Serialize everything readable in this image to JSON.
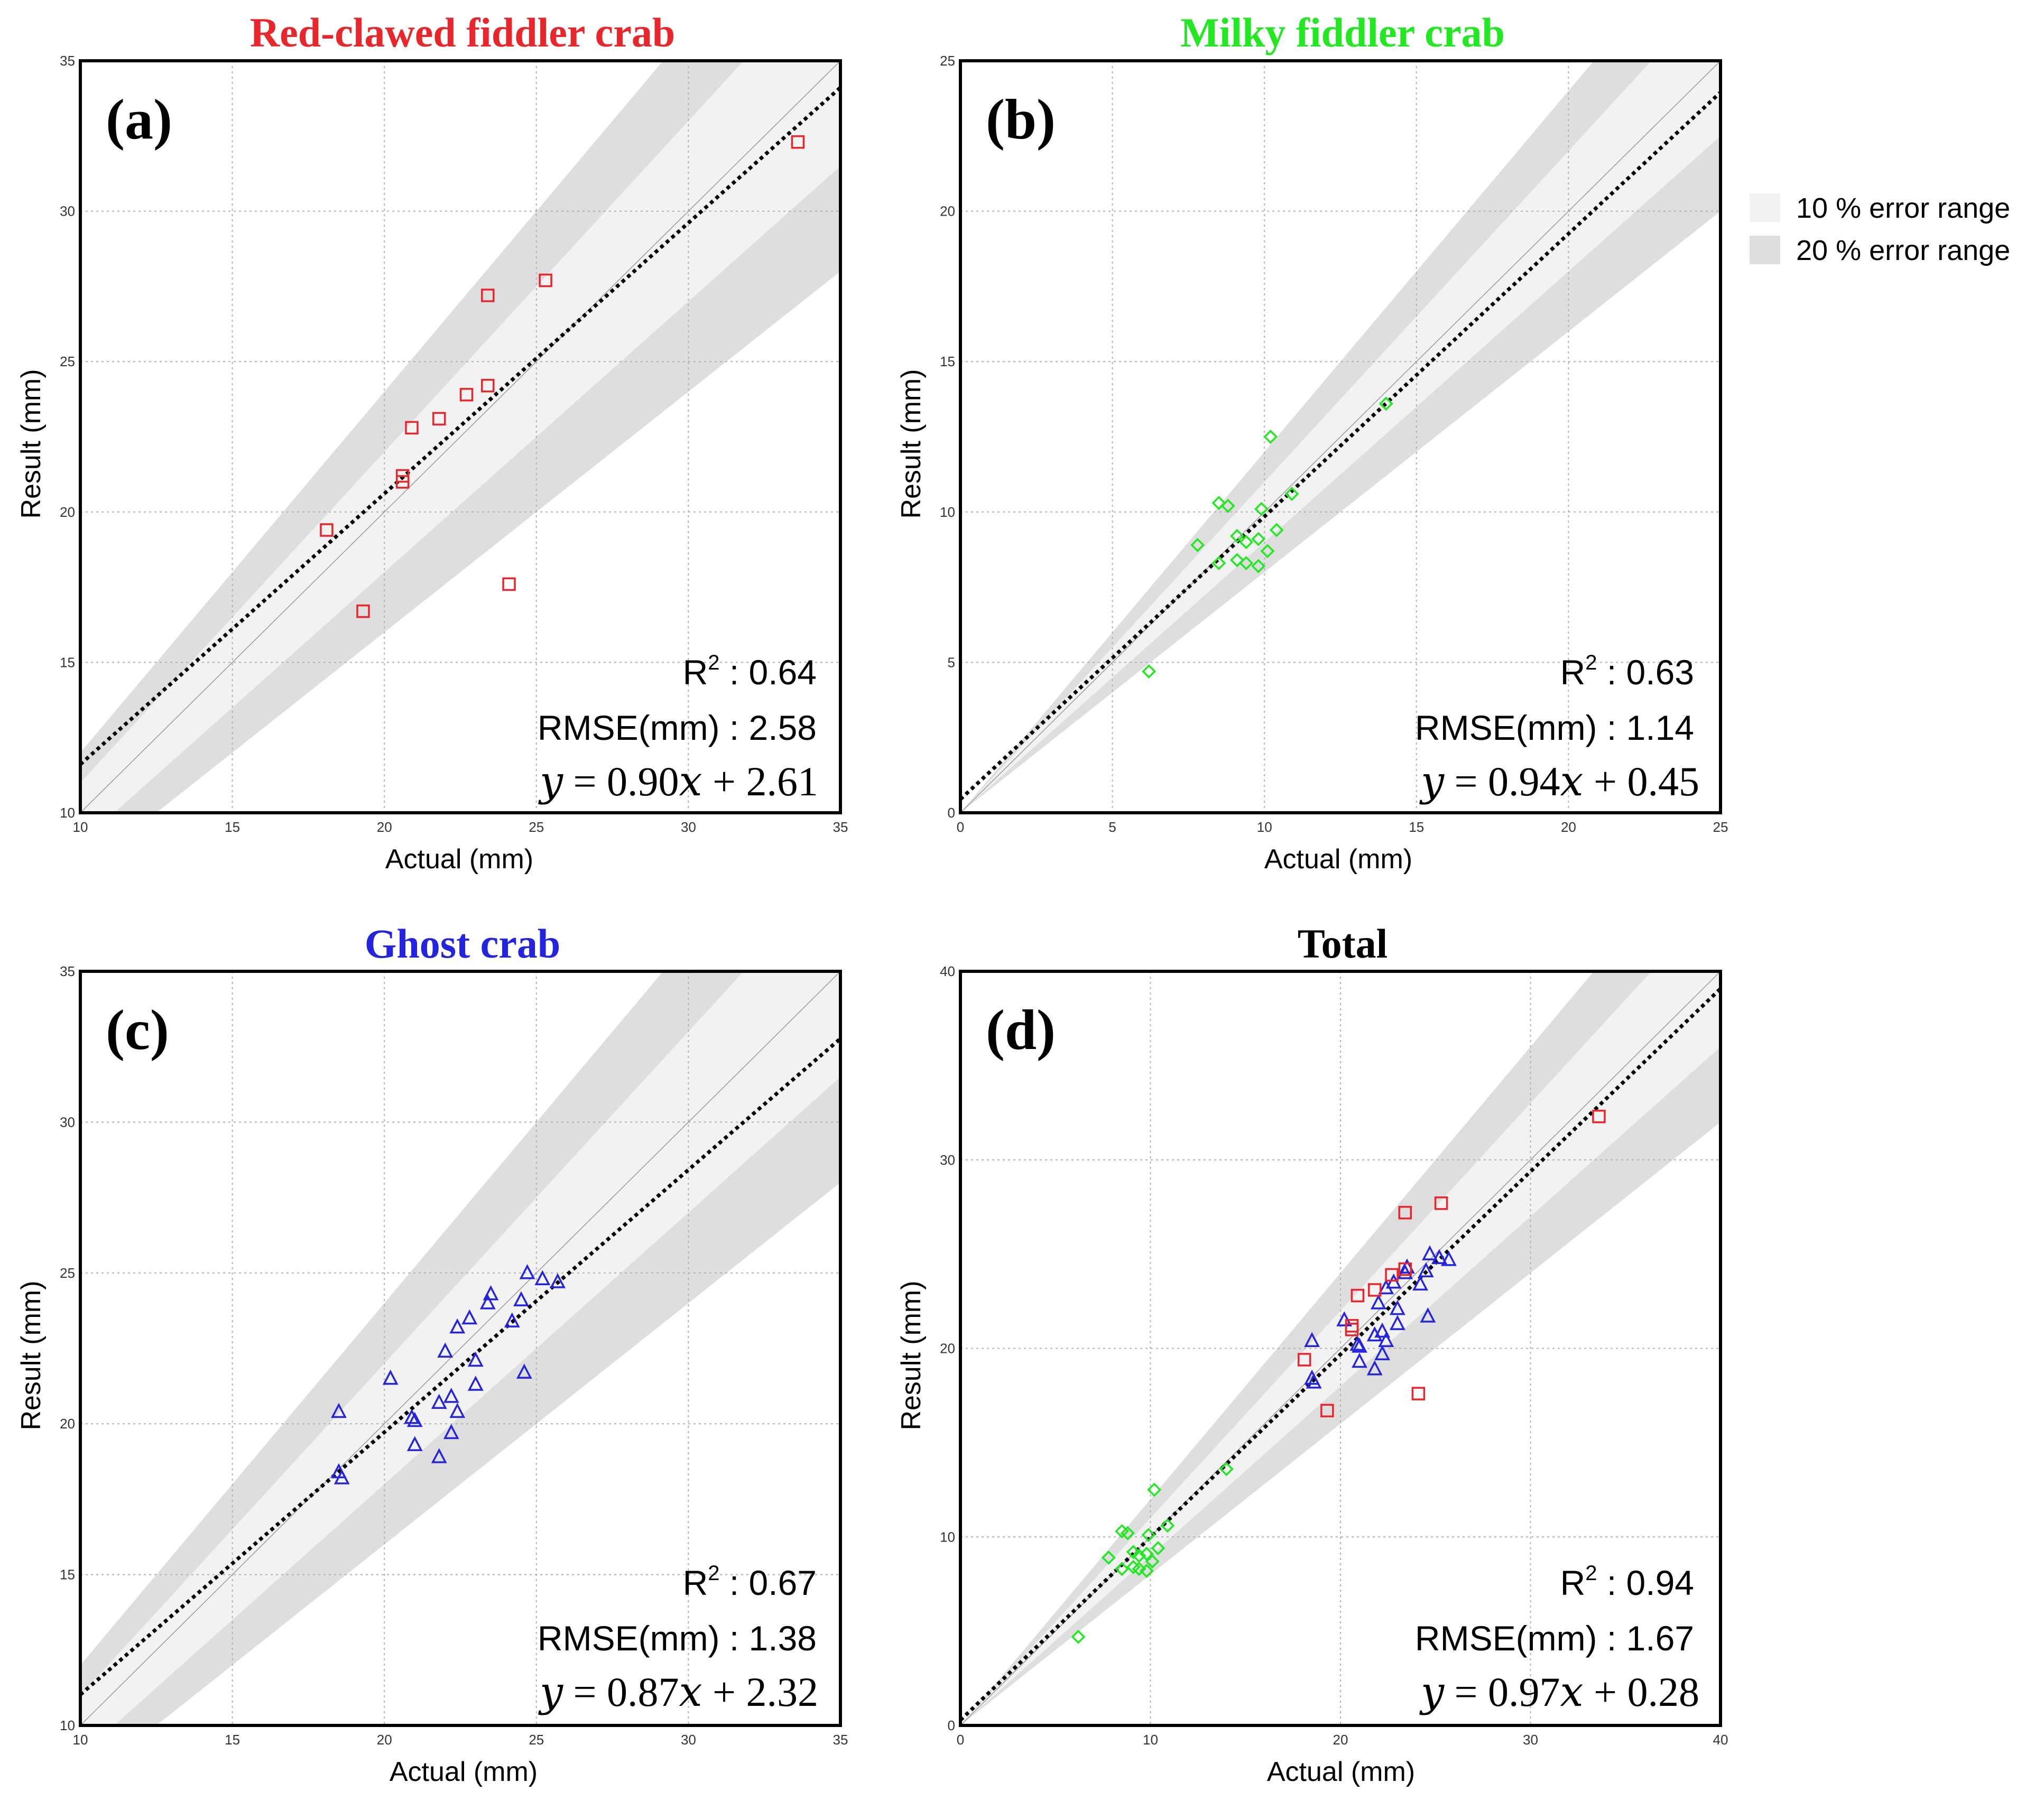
{
  "legend": {
    "items": [
      {
        "label": "10 % error range",
        "color": "#f2f2f2"
      },
      {
        "label": "20 % error range",
        "color": "#dedede"
      }
    ]
  },
  "colors": {
    "red": "#e8262c",
    "green": "#22e822",
    "blue": "#2323e0",
    "black": "#000000"
  },
  "chart_data": [
    {
      "type": "scatter",
      "panel_label": "(a)",
      "title": "Red-clawed fiddler crab",
      "title_color": "#e8262c",
      "xlabel": "Actual (mm)",
      "ylabel": "Result (mm)",
      "xlim": [
        10,
        35
      ],
      "ylim": [
        10,
        35
      ],
      "xticks": [
        10,
        15,
        20,
        25,
        30,
        35
      ],
      "yticks": [
        10,
        15,
        20,
        25,
        30,
        35
      ],
      "grid": true,
      "fit": {
        "slope": 0.9,
        "intercept": 2.61
      },
      "stats": {
        "r2_label": "R",
        "r2_sup": "2",
        "r2_value": " : 0.64",
        "rmse": "RMSE(mm) : 2.58",
        "equation": "𝑦 = 0.90𝑥 + 2.61"
      },
      "series": [
        {
          "name": "Red-clawed fiddler crab",
          "marker": "square",
          "color": "#e8262c",
          "points": [
            [
              18.1,
              19.4
            ],
            [
              19.3,
              16.7
            ],
            [
              20.6,
              21.0
            ],
            [
              20.6,
              21.2
            ],
            [
              20.9,
              22.8
            ],
            [
              21.8,
              23.1
            ],
            [
              22.7,
              23.9
            ],
            [
              23.4,
              24.2
            ],
            [
              23.4,
              27.2
            ],
            [
              25.3,
              27.7
            ],
            [
              24.1,
              17.6
            ],
            [
              33.6,
              32.3
            ]
          ]
        }
      ]
    },
    {
      "type": "scatter",
      "panel_label": "(b)",
      "title": "Milky fiddler crab",
      "title_color": "#22e822",
      "xlabel": "Actual (mm)",
      "ylabel": "Result (mm)",
      "xlim": [
        0,
        25
      ],
      "ylim": [
        0,
        25
      ],
      "xticks": [
        0,
        5,
        10,
        15,
        20,
        25
      ],
      "yticks": [
        0,
        5,
        10,
        15,
        20,
        25
      ],
      "grid": true,
      "fit": {
        "slope": 0.94,
        "intercept": 0.45
      },
      "stats": {
        "r2_label": "R",
        "r2_sup": "2",
        "r2_value": " : 0.63",
        "rmse": "RMSE(mm) : 1.14",
        "equation": "𝑦 = 0.94𝑥 + 0.45"
      },
      "series": [
        {
          "name": "Milky fiddler crab",
          "marker": "diamond",
          "color": "#22e822",
          "points": [
            [
              6.2,
              4.7
            ],
            [
              7.8,
              8.9
            ],
            [
              8.5,
              8.3
            ],
            [
              8.5,
              10.3
            ],
            [
              8.8,
              10.2
            ],
            [
              9.1,
              9.2
            ],
            [
              9.1,
              8.4
            ],
            [
              9.4,
              8.3
            ],
            [
              9.4,
              9.0
            ],
            [
              9.8,
              9.1
            ],
            [
              9.8,
              8.2
            ],
            [
              9.9,
              10.1
            ],
            [
              10.1,
              8.7
            ],
            [
              10.2,
              12.5
            ],
            [
              10.4,
              9.4
            ],
            [
              10.9,
              10.6
            ],
            [
              14.0,
              13.6
            ]
          ]
        }
      ]
    },
    {
      "type": "scatter",
      "panel_label": "(c)",
      "title": "Ghost crab",
      "title_color": "#2323e0",
      "xlabel": "Actual (mm)",
      "ylabel": "Result (mm)",
      "xlim": [
        10,
        35
      ],
      "ylim": [
        10,
        35
      ],
      "xticks": [
        10,
        15,
        20,
        25,
        30,
        35
      ],
      "yticks": [
        10,
        15,
        20,
        25,
        30,
        35
      ],
      "grid": true,
      "fit": {
        "slope": 0.87,
        "intercept": 2.32
      },
      "stats": {
        "r2_label": "R",
        "r2_sup": "2",
        "r2_value": " : 0.67",
        "rmse": "RMSE(mm) : 1.38",
        "equation": "𝑦 = 0.87𝑥 + 2.32"
      },
      "series": [
        {
          "name": "Ghost crab",
          "marker": "triangle",
          "color": "#2323e0",
          "points": [
            [
              18.5,
              18.4
            ],
            [
              18.6,
              18.2
            ],
            [
              18.5,
              20.4
            ],
            [
              20.2,
              21.5
            ],
            [
              20.9,
              20.2
            ],
            [
              21.0,
              20.1
            ],
            [
              21.0,
              19.3
            ],
            [
              21.8,
              18.9
            ],
            [
              21.8,
              20.7
            ],
            [
              22.0,
              22.4
            ],
            [
              22.2,
              20.9
            ],
            [
              22.2,
              19.7
            ],
            [
              22.4,
              20.4
            ],
            [
              22.4,
              23.2
            ],
            [
              22.8,
              23.5
            ],
            [
              23.0,
              21.3
            ],
            [
              23.0,
              22.1
            ],
            [
              23.4,
              24.0
            ],
            [
              23.5,
              24.3
            ],
            [
              24.2,
              23.4
            ],
            [
              24.5,
              24.1
            ],
            [
              24.7,
              25.0
            ],
            [
              24.6,
              21.7
            ],
            [
              25.2,
              24.8
            ],
            [
              25.7,
              24.7
            ]
          ]
        }
      ]
    },
    {
      "type": "scatter",
      "panel_label": "(d)",
      "title": "Total",
      "title_color": "#000000",
      "xlabel": "Actual (mm)",
      "ylabel": "Result (mm)",
      "xlim": [
        0,
        40
      ],
      "ylim": [
        0,
        40
      ],
      "xticks": [
        0,
        10,
        20,
        30,
        40
      ],
      "yticks": [
        0,
        10,
        20,
        30,
        40
      ],
      "grid": true,
      "fit": {
        "slope": 0.97,
        "intercept": 0.28
      },
      "stats": {
        "r2_label": "R",
        "r2_sup": "2",
        "r2_value": " : 0.94",
        "rmse": "RMSE(mm) : 1.67",
        "equation": "𝑦 = 0.97𝑥 + 0.28"
      },
      "series": [
        {
          "name": "Milky fiddler crab",
          "marker": "diamond",
          "color": "#22e822",
          "points": [
            [
              6.2,
              4.7
            ],
            [
              7.8,
              8.9
            ],
            [
              8.5,
              8.3
            ],
            [
              8.5,
              10.3
            ],
            [
              8.8,
              10.2
            ],
            [
              9.1,
              9.2
            ],
            [
              9.1,
              8.4
            ],
            [
              9.4,
              8.3
            ],
            [
              9.4,
              9.0
            ],
            [
              9.8,
              9.1
            ],
            [
              9.8,
              8.2
            ],
            [
              9.9,
              10.1
            ],
            [
              10.1,
              8.7
            ],
            [
              10.2,
              12.5
            ],
            [
              10.4,
              9.4
            ],
            [
              10.9,
              10.6
            ],
            [
              14.0,
              13.6
            ]
          ]
        },
        {
          "name": "Ghost crab",
          "marker": "triangle",
          "color": "#2323e0",
          "points": [
            [
              18.5,
              18.4
            ],
            [
              18.6,
              18.2
            ],
            [
              18.5,
              20.4
            ],
            [
              20.2,
              21.5
            ],
            [
              20.9,
              20.2
            ],
            [
              21.0,
              20.1
            ],
            [
              21.0,
              19.3
            ],
            [
              21.8,
              18.9
            ],
            [
              21.8,
              20.7
            ],
            [
              22.0,
              22.4
            ],
            [
              22.2,
              20.9
            ],
            [
              22.2,
              19.7
            ],
            [
              22.4,
              20.4
            ],
            [
              22.4,
              23.2
            ],
            [
              22.8,
              23.5
            ],
            [
              23.0,
              21.3
            ],
            [
              23.0,
              22.1
            ],
            [
              23.4,
              24.0
            ],
            [
              23.5,
              24.3
            ],
            [
              24.2,
              23.4
            ],
            [
              24.5,
              24.1
            ],
            [
              24.7,
              25.0
            ],
            [
              24.6,
              21.7
            ],
            [
              25.2,
              24.8
            ],
            [
              25.7,
              24.7
            ]
          ]
        },
        {
          "name": "Red-clawed fiddler crab",
          "marker": "square",
          "color": "#e8262c",
          "points": [
            [
              18.1,
              19.4
            ],
            [
              19.3,
              16.7
            ],
            [
              20.6,
              21.0
            ],
            [
              20.6,
              21.2
            ],
            [
              20.9,
              22.8
            ],
            [
              21.8,
              23.1
            ],
            [
              22.7,
              23.9
            ],
            [
              23.4,
              24.2
            ],
            [
              23.4,
              27.2
            ],
            [
              25.3,
              27.7
            ],
            [
              24.1,
              17.6
            ],
            [
              33.6,
              32.3
            ]
          ]
        }
      ]
    }
  ]
}
